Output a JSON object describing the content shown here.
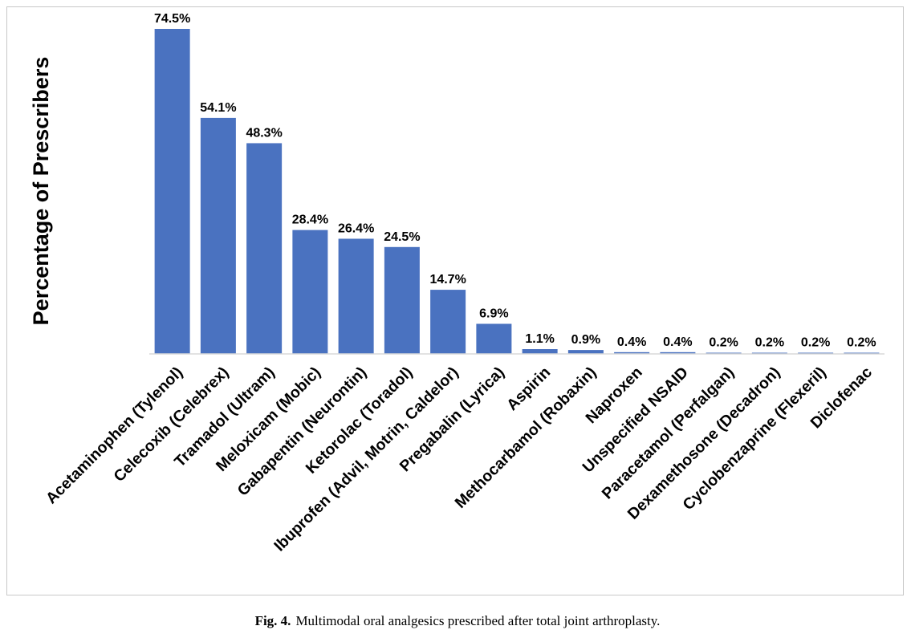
{
  "chart_data": {
    "type": "bar",
    "title": "",
    "xlabel": "",
    "ylabel": "Percentage of Prescribers",
    "ylim": [
      0,
      76
    ],
    "grid": false,
    "legend": "none",
    "bar_color": "#4a72c0",
    "axis_color": "#d9d9d9",
    "categories": [
      "Acetaminophen (Tylenol)",
      "Celecoxib (Celebrex)",
      "Tramadol (Ultram)",
      "Meloxicam (Mobic)",
      "Gabapentin (Neurontin)",
      "Ketorolac (Toradol)",
      "Ibuprofen (Advil, Motrin, Caldelor)",
      "Pregabalin (Lyrica)",
      "Aspirin",
      "Methocarbamol (Robaxin)",
      "Naproxen",
      "Unspecified NSAID",
      "Paracetamol (Perfalgan)",
      "Dexamethosone (Decadron)",
      "Cyclobenzaprine (Flexeril)",
      "Diclofenac"
    ],
    "values": [
      74.5,
      54.1,
      48.3,
      28.4,
      26.4,
      24.5,
      14.7,
      6.9,
      1.1,
      0.9,
      0.4,
      0.4,
      0.2,
      0.2,
      0.2,
      0.2
    ],
    "data_labels": [
      "74.5%",
      "54.1%",
      "48.3%",
      "28.4%",
      "26.4%",
      "24.5%",
      "14.7%",
      "6.9%",
      "1.1%",
      "0.9%",
      "0.4%",
      "0.4%",
      "0.2%",
      "0.2%",
      "0.2%",
      "0.2%"
    ]
  },
  "caption": {
    "label": "Fig. 4.",
    "text": "Multimodal oral analgesics prescribed after total joint arthroplasty."
  }
}
